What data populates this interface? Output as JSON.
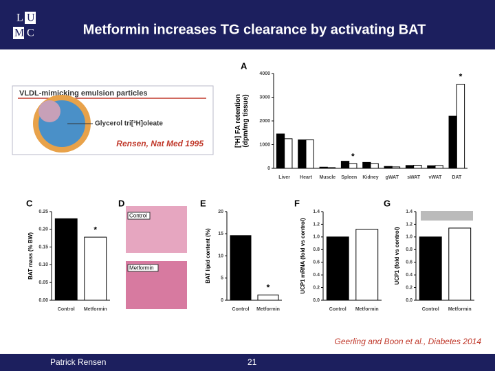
{
  "header": {
    "logo": [
      "L",
      "U",
      "M",
      "C"
    ],
    "title": "Metformin increases TG clearance by activating BAT"
  },
  "diagram": {
    "title": "VLDL-mimicking emulsion particles",
    "label": "Glycerol tri[³H]oleate",
    "reference": "Rensen, Nat Med 1995"
  },
  "histology": {
    "letter": "D",
    "labels": [
      "Control",
      "Metformin"
    ]
  },
  "citation": "Geerling and Boon et al., Diabetes 2014",
  "footer": {
    "author": "Patrick Rensen",
    "page": "21"
  },
  "chart_data": [
    {
      "type": "bar",
      "letter": "A",
      "ylabel": [
        "[³H] FA retention",
        "(dpm/mg tissue)"
      ],
      "categories": [
        "Liver",
        "Heart",
        "Muscle",
        "Spleen",
        "Kidney",
        "gWAT",
        "sWAT",
        "vWAT",
        "DAT"
      ],
      "series": [
        {
          "color": "#000000",
          "values": [
            1450,
            1200,
            50,
            300,
            250,
            80,
            120,
            110,
            2200
          ]
        },
        {
          "color": "#ffffff",
          "values": [
            1250,
            1200,
            30,
            200,
            200,
            60,
            130,
            120,
            3550
          ]
        }
      ],
      "ylim": [
        0,
        4000
      ],
      "yticks": [
        0,
        1000,
        2000,
        3000,
        4000
      ],
      "annotations": [
        {
          "text": "*",
          "category": "Spleen"
        },
        {
          "text": "*",
          "category": "DAT"
        }
      ]
    },
    {
      "type": "bar",
      "letter": "C",
      "ylabel": [
        "BAT mass (% BW)"
      ],
      "categories": [
        "Control",
        "Metformin"
      ],
      "values": [
        0.23,
        0.178
      ],
      "colors": [
        "#000000",
        "#ffffff"
      ],
      "ylim": [
        0,
        0.25
      ],
      "yticks": [
        {
          "value": 0,
          "label": "0.00"
        },
        {
          "value": 0.05,
          "label": "0.05"
        },
        {
          "value": 0.1,
          "label": "0.10"
        },
        {
          "value": 0.15,
          "label": "0.15"
        },
        {
          "value": 0.2,
          "label": "0.20"
        },
        {
          "value": 0.25,
          "label": "0.25"
        }
      ],
      "annotations": [
        {
          "text": "*",
          "category": "Metformin"
        }
      ]
    },
    {
      "type": "bar",
      "letter": "E",
      "ylabel": [
        "BAT lipid content (%)"
      ],
      "categories": [
        "Control",
        "Metformin"
      ],
      "values": [
        14.6,
        1.2
      ],
      "colors": [
        "#000000",
        "#ffffff"
      ],
      "ylim": [
        0,
        20
      ],
      "yticks": [
        0,
        5,
        10,
        15,
        20
      ],
      "annotations": [
        {
          "text": "*",
          "category": "Metformin"
        }
      ]
    },
    {
      "type": "bar",
      "letter": "F",
      "ylabel": [
        "UCP1 mRNA (fold vs control)"
      ],
      "categories": [
        "Control",
        "Metformin"
      ],
      "values": [
        1.0,
        1.12
      ],
      "colors": [
        "#000000",
        "#ffffff"
      ],
      "ylim": [
        0,
        1.4
      ],
      "yticks": [
        {
          "value": 0,
          "label": "0.0"
        },
        {
          "value": 0.2,
          "label": "0.2"
        },
        {
          "value": 0.4,
          "label": "0.4"
        },
        {
          "value": 0.6,
          "label": "0.6"
        },
        {
          "value": 0.8,
          "label": "0.8"
        },
        {
          "value": 1,
          "label": "1.0"
        },
        {
          "value": 1.2,
          "label": "1.2"
        },
        {
          "value": 1.4,
          "label": "1.4"
        }
      ]
    },
    {
      "type": "bar",
      "letter": "G",
      "ylabel": [
        "UCP1 (fold vs control)"
      ],
      "categories": [
        "Control",
        "Metformin"
      ],
      "values": [
        1.0,
        1.14
      ],
      "colors": [
        "#000000",
        "#ffffff"
      ],
      "ylim": [
        0,
        1.4
      ],
      "yticks": [
        {
          "value": 0,
          "label": "0.0"
        },
        {
          "value": 0.2,
          "label": "0.2"
        },
        {
          "value": 0.4,
          "label": "0.4"
        },
        {
          "value": 0.6,
          "label": "0.6"
        },
        {
          "value": 0.8,
          "label": "0.8"
        },
        {
          "value": 1,
          "label": "1.0"
        },
        {
          "value": 1.2,
          "label": "1.2"
        },
        {
          "value": 1.4,
          "label": "1.4"
        }
      ]
    }
  ]
}
